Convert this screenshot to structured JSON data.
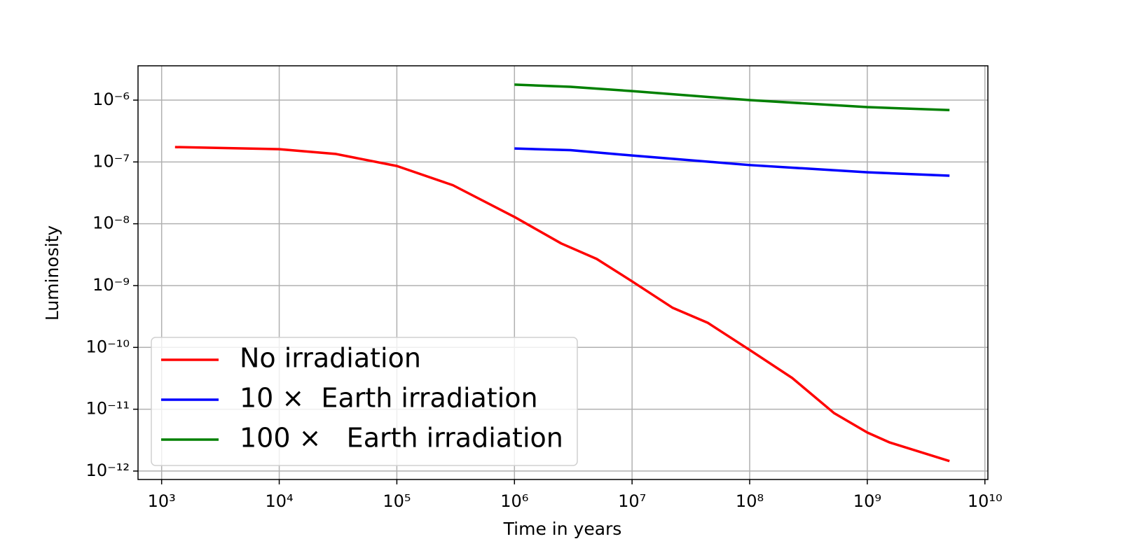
{
  "chart_data": {
    "type": "line",
    "xlabel": "Time in years",
    "ylabel": "Luminosity",
    "xscale": "log",
    "yscale": "log",
    "grid": true,
    "legend": "lower left",
    "xlim": [
      630,
      10600000000.0
    ],
    "ylim": [
      7.3e-13,
      3.59e-06
    ],
    "xticks": [
      {
        "value": 1000,
        "label": "10³"
      },
      {
        "value": 10000,
        "label": "10⁴"
      },
      {
        "value": 100000,
        "label": "10⁵"
      },
      {
        "value": 1000000,
        "label": "10⁶"
      },
      {
        "value": 10000000,
        "label": "10⁷"
      },
      {
        "value": 100000000,
        "label": "10⁸"
      },
      {
        "value": 1000000000,
        "label": "10⁹"
      },
      {
        "value": 10000000000,
        "label": "10¹⁰"
      }
    ],
    "yticks": [
      {
        "value": 1e-12,
        "label": "10⁻¹²"
      },
      {
        "value": 1e-11,
        "label": "10⁻¹¹"
      },
      {
        "value": 1e-10,
        "label": "10⁻¹⁰"
      },
      {
        "value": 1e-09,
        "label": "10⁻⁹"
      },
      {
        "value": 1e-08,
        "label": "10⁻⁸"
      },
      {
        "value": 1e-07,
        "label": "10⁻⁷"
      },
      {
        "value": 1e-06,
        "label": "10⁻⁶"
      }
    ],
    "series": [
      {
        "name": "No irradiation",
        "color": "#ff0000",
        "x": [
          1300,
          10000,
          30000,
          100000,
          300000,
          1000000,
          2500000,
          5000000,
          10000000,
          22000000,
          44000000,
          100000000,
          230000000,
          520000000,
          1000000000,
          1550000000,
          5000000000
        ],
        "values": [
          1.74e-07,
          1.61e-07,
          1.35e-07,
          8.6e-08,
          4.2e-08,
          1.29e-08,
          4.8e-09,
          2.7e-09,
          1.17e-09,
          4.4e-10,
          2.5e-10,
          9.1e-11,
          3.2e-11,
          8.7e-12,
          4.2e-12,
          2.9e-12,
          1.45e-12
        ]
      },
      {
        "name": "10 ×  Earth irradiation",
        "color": "#0000ff",
        "x": [
          1000000,
          3000000,
          10000000,
          100000000,
          1000000000,
          5000000000
        ],
        "values": [
          1.65e-07,
          1.55e-07,
          1.27e-07,
          8.9e-08,
          6.8e-08,
          6e-08
        ]
      },
      {
        "name": "100 ×   Earth irradiation",
        "color": "#008000",
        "x": [
          1000000,
          3000000,
          10000000,
          100000000,
          1000000000,
          5000000000
        ],
        "values": [
          1.78e-06,
          1.64e-06,
          1.4e-06,
          1e-06,
          7.7e-07,
          6.9e-07
        ]
      }
    ]
  }
}
